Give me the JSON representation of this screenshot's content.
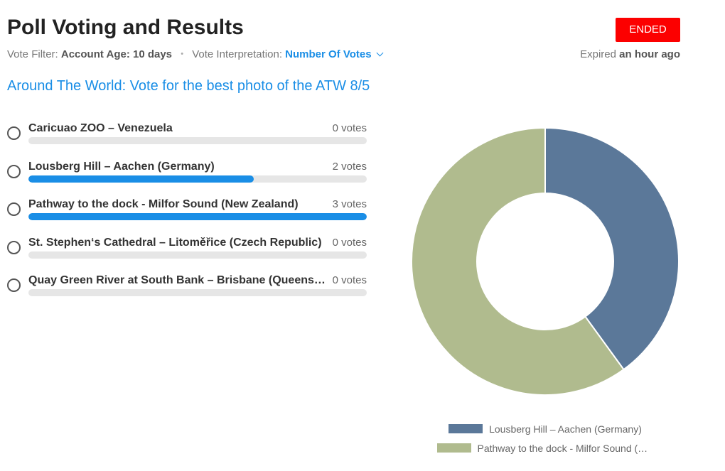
{
  "header": {
    "title": "Poll Voting and Results",
    "status": "ENDED",
    "filter_label": "Vote Filter:",
    "filter_value": "Account Age: 10 days",
    "separator": "•",
    "interpretation_label": "Vote Interpretation:",
    "interpretation_value": "Number Of Votes",
    "expired_label": "Expired",
    "expired_value": "an hour ago"
  },
  "poll": {
    "question": "Around The World: Vote for the best photo of the ATW 8/5",
    "options": [
      {
        "label": "Caricuao ZOO – Venezuela",
        "votes": 0,
        "votes_text": "0 votes",
        "fraction": 0
      },
      {
        "label": "Lousberg Hill – Aachen (Germany)",
        "votes": 2,
        "votes_text": "2 votes",
        "fraction": 0.6667
      },
      {
        "label": "Pathway to the dock - Milfor Sound (New Zealand)",
        "votes": 3,
        "votes_text": "3 votes",
        "fraction": 1
      },
      {
        "label": "St. Stephen‘s Cathedral – Litoměřice (Czech Republic)",
        "votes": 0,
        "votes_text": "0 votes",
        "fraction": 0
      },
      {
        "label": "Quay Green River at South Bank – Brisbane (Queensland, Australia)",
        "votes": 0,
        "votes_text": "0 votes",
        "fraction": 0
      }
    ]
  },
  "colors": {
    "accent": "#1a8ee6",
    "badge": "#fc0000",
    "slice_1": "#5b7899",
    "slice_2": "#b0bb8e"
  },
  "chart_data": {
    "type": "pie",
    "donut": true,
    "categories": [
      "Lousberg Hill – Aachen (Germany)",
      "Pathway to the dock - Milfor Sound (New Zealand)"
    ],
    "values": [
      2,
      3
    ],
    "colors": [
      "#5b7899",
      "#b0bb8e"
    ],
    "legend": [
      {
        "label": "Lousberg Hill – Aachen (Germany)",
        "color": "#5b7899"
      },
      {
        "label": "Pathway to the dock - Milfor Sound (New Zealand)",
        "color": "#b0bb8e"
      }
    ],
    "legend_position": "bottom"
  }
}
